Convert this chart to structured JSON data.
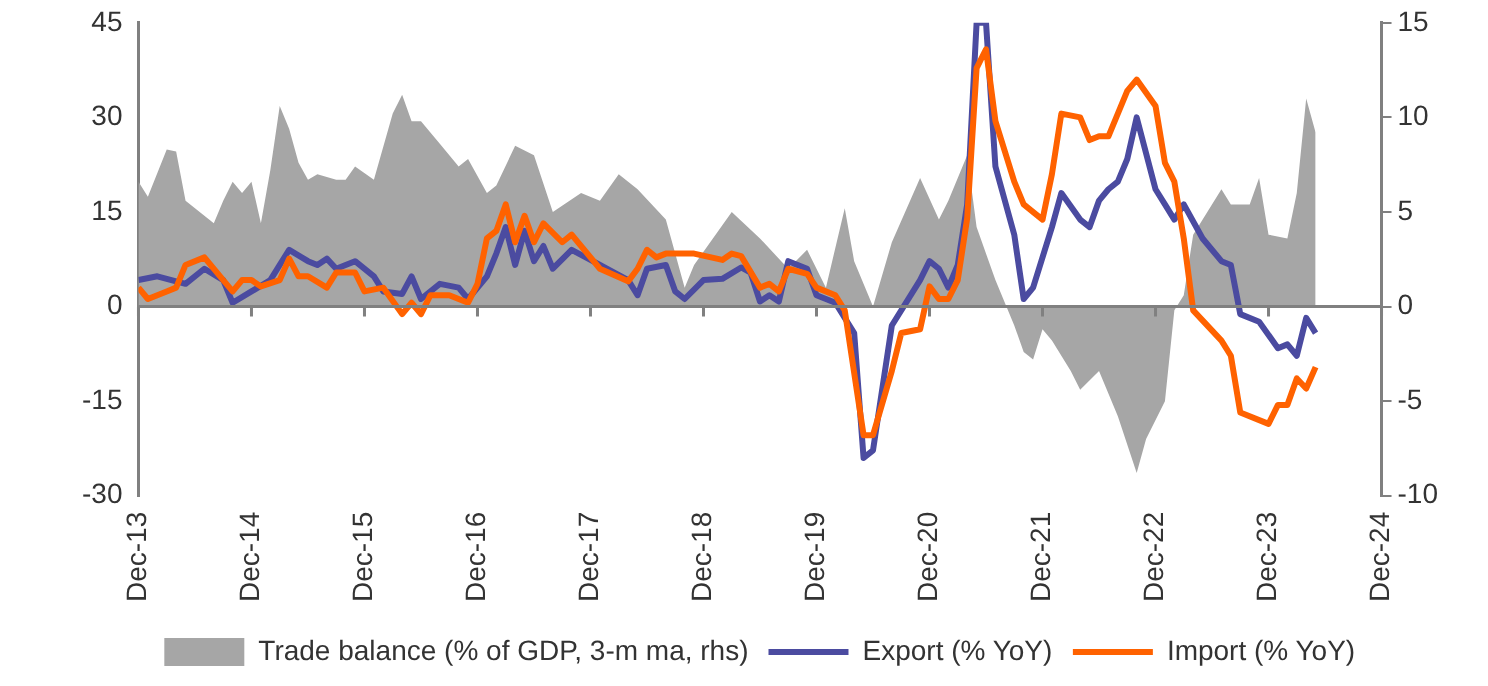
{
  "chart_data": {
    "type": "line",
    "legend": "bottom",
    "xlim": [
      "2013-12",
      "2024-12"
    ],
    "xticks": [
      {
        "value": "2013-12",
        "label": "Dec-13"
      },
      {
        "value": "2014-12",
        "label": "Dec-14"
      },
      {
        "value": "2015-12",
        "label": "Dec-15"
      },
      {
        "value": "2016-12",
        "label": "Dec-16"
      },
      {
        "value": "2017-12",
        "label": "Dec-17"
      },
      {
        "value": "2018-12",
        "label": "Dec-18"
      },
      {
        "value": "2019-12",
        "label": "Dec-19"
      },
      {
        "value": "2020-12",
        "label": "Dec-20"
      },
      {
        "value": "2021-12",
        "label": "Dec-21"
      },
      {
        "value": "2022-12",
        "label": "Dec-22"
      },
      {
        "value": "2023-12",
        "label": "Dec-23"
      },
      {
        "value": "2024-12",
        "label": "Dec-24"
      }
    ],
    "ylim": [
      -30,
      45
    ],
    "yticks": [
      -30,
      -15,
      0,
      15,
      30,
      45
    ],
    "y2lim": [
      -10,
      15
    ],
    "y2ticks": [
      -10,
      -5,
      0,
      5,
      10,
      15
    ],
    "series": [
      {
        "name": "Trade balance (% of GDP, 3-m ma, rhs)",
        "type": "area",
        "axis": "y2",
        "color": "#a6a6a6",
        "x": [
          "2013-12",
          "2014-01",
          "2014-03",
          "2014-04",
          "2014-05",
          "2014-08",
          "2014-09",
          "2014-10",
          "2014-11",
          "2014-12",
          "2015-01",
          "2015-02",
          "2015-03",
          "2015-04",
          "2015-05",
          "2015-06",
          "2015-07",
          "2015-09",
          "2015-10",
          "2015-11",
          "2016-01",
          "2016-03",
          "2016-04",
          "2016-05",
          "2016-06",
          "2016-08",
          "2016-10",
          "2016-11",
          "2017-01",
          "2017-02",
          "2017-04",
          "2017-06",
          "2017-08",
          "2017-11",
          "2018-01",
          "2018-03",
          "2018-05",
          "2018-08",
          "2018-10",
          "2018-11",
          "2019-03",
          "2019-06",
          "2019-09",
          "2019-11",
          "2020-01",
          "2020-03",
          "2020-04",
          "2020-06",
          "2020-08",
          "2020-11",
          "2021-01",
          "2021-02",
          "2021-04",
          "2021-05",
          "2021-07",
          "2021-09",
          "2021-10",
          "2021-11",
          "2021-12",
          "2022-01",
          "2022-03",
          "2022-04",
          "2022-06",
          "2022-08",
          "2022-10",
          "2022-11",
          "2023-01",
          "2023-02",
          "2023-03",
          "2023-04",
          "2023-07",
          "2023-08",
          "2023-10",
          "2023-11",
          "2023-12",
          "2024-02",
          "2024-03",
          "2024-04",
          "2024-05"
        ],
        "values": [
          6.6,
          5.8,
          8.3,
          8.2,
          5.6,
          4.4,
          5.6,
          6.6,
          6.0,
          6.6,
          4.4,
          7.2,
          10.6,
          9.4,
          7.6,
          6.7,
          7.0,
          6.7,
          6.7,
          7.4,
          6.7,
          10.2,
          11.2,
          9.8,
          9.8,
          8.6,
          7.4,
          7.8,
          6.0,
          6.4,
          8.5,
          8.0,
          5.0,
          6.0,
          5.6,
          7.0,
          6.2,
          4.6,
          1.0,
          2.2,
          5.0,
          3.6,
          2.0,
          3.0,
          1.0,
          5.2,
          2.4,
          0,
          3.4,
          6.8,
          4.6,
          5.6,
          8.0,
          4.2,
          1.4,
          -1.0,
          -2.4,
          -2.8,
          -1.2,
          -1.8,
          -3.4,
          -4.4,
          -3.4,
          -5.8,
          -8.8,
          -7.0,
          -5.0,
          -0.2,
          0.6,
          3.8,
          6.2,
          5.4,
          5.4,
          6.8,
          3.8,
          3.6,
          6.0,
          11.0,
          9.2
        ]
      },
      {
        "name": "Export (% YoY)",
        "type": "line",
        "color": "#4b4ba0",
        "x": [
          "2013-12",
          "2014-02",
          "2014-05",
          "2014-07",
          "2014-09",
          "2014-10",
          "2014-12",
          "2015-02",
          "2015-04",
          "2015-06",
          "2015-07",
          "2015-08",
          "2015-09",
          "2015-11",
          "2016-01",
          "2016-02",
          "2016-04",
          "2016-05",
          "2016-06",
          "2016-08",
          "2016-10",
          "2016-11",
          "2017-01",
          "2017-02",
          "2017-03",
          "2017-04",
          "2017-05",
          "2017-06",
          "2017-07",
          "2017-08",
          "2017-10",
          "2018-01",
          "2018-04",
          "2018-05",
          "2018-06",
          "2018-08",
          "2018-09",
          "2018-10",
          "2018-12",
          "2019-02",
          "2019-04",
          "2019-05",
          "2019-06",
          "2019-07",
          "2019-08",
          "2019-09",
          "2019-11",
          "2019-12",
          "2020-02",
          "2020-04",
          "2020-05",
          "2020-06",
          "2020-08",
          "2020-11",
          "2020-12",
          "2021-01",
          "2021-02",
          "2021-03",
          "2021-04",
          "2021-05",
          "2021-06",
          "2021-07",
          "2021-09",
          "2021-10",
          "2021-11",
          "2022-01",
          "2022-02",
          "2022-04",
          "2022-05",
          "2022-06",
          "2022-07",
          "2022-08",
          "2022-09",
          "2022-10",
          "2022-12",
          "2023-01",
          "2023-02",
          "2023-03",
          "2023-05",
          "2023-07",
          "2023-08",
          "2023-09",
          "2023-11",
          "2024-01",
          "2024-02",
          "2024-03",
          "2024-04",
          "2024-05"
        ],
        "values": [
          4.2,
          4.8,
          3.6,
          6.0,
          4.2,
          0.6,
          2.4,
          4.2,
          9.0,
          7.2,
          6.6,
          7.6,
          6.0,
          7.2,
          4.8,
          2.4,
          2.0,
          4.8,
          1.2,
          3.6,
          3.0,
          1.2,
          4.8,
          8.4,
          12.6,
          6.6,
          12.0,
          7.2,
          9.6,
          6.0,
          9.0,
          6.6,
          4.2,
          1.8,
          6.0,
          6.6,
          2.4,
          1.2,
          4.2,
          4.4,
          6.2,
          5.4,
          0.8,
          1.8,
          0.8,
          7.2,
          6.0,
          1.8,
          0.6,
          -4.2,
          -24.0,
          -22.8,
          -3.0,
          4.2,
          7.2,
          6.0,
          3.0,
          6.6,
          16.2,
          45,
          45,
          22.2,
          11.4,
          1.2,
          3.0,
          12.6,
          18,
          13.8,
          12.6,
          16.8,
          18.6,
          19.8,
          23.4,
          30,
          18.6,
          16.2,
          13.8,
          16.2,
          10.8,
          7.2,
          6.6,
          -1.2,
          -2.4,
          -6.6,
          -6.0,
          -7.8,
          -1.8,
          -4.2
        ]
      },
      {
        "name": "Import (% YoY)",
        "type": "line",
        "color": "#ff6200",
        "x": [
          "2013-12",
          "2014-01",
          "2014-03",
          "2014-04",
          "2014-05",
          "2014-07",
          "2014-09",
          "2014-10",
          "2014-11",
          "2014-12",
          "2015-01",
          "2015-03",
          "2015-04",
          "2015-05",
          "2015-06",
          "2015-08",
          "2015-09",
          "2015-11",
          "2015-12",
          "2016-02",
          "2016-04",
          "2016-05",
          "2016-06",
          "2016-07",
          "2016-09",
          "2016-11",
          "2016-12",
          "2017-01",
          "2017-02",
          "2017-03",
          "2017-04",
          "2017-05",
          "2017-06",
          "2017-07",
          "2017-09",
          "2017-10",
          "2018-01",
          "2018-04",
          "2018-05",
          "2018-06",
          "2018-07",
          "2018-08",
          "2018-11",
          "2019-02",
          "2019-03",
          "2019-04",
          "2019-06",
          "2019-07",
          "2019-08",
          "2019-09",
          "2019-11",
          "2019-12",
          "2020-02",
          "2020-03",
          "2020-05",
          "2020-06",
          "2020-08",
          "2020-09",
          "2020-11",
          "2020-12",
          "2021-01",
          "2021-02",
          "2021-03",
          "2021-04",
          "2021-05",
          "2021-06",
          "2021-07",
          "2021-09",
          "2021-10",
          "2021-12",
          "2022-01",
          "2022-02",
          "2022-04",
          "2022-05",
          "2022-06",
          "2022-07",
          "2022-09",
          "2022-10",
          "2022-12",
          "2023-01",
          "2023-02",
          "2023-03",
          "2023-04",
          "2023-07",
          "2023-08",
          "2023-09",
          "2023-12",
          "2024-01",
          "2024-02",
          "2024-03",
          "2024-04",
          "2024-05"
        ],
        "values": [
          3.0,
          1.2,
          2.4,
          3.0,
          6.6,
          7.8,
          4.2,
          2.4,
          4.2,
          4.2,
          3.2,
          4.2,
          7.6,
          4.8,
          4.8,
          3.0,
          5.4,
          5.4,
          2.4,
          3.0,
          -1.2,
          0.6,
          -1.2,
          1.8,
          1.8,
          0.6,
          3.6,
          10.8,
          12.0,
          16.2,
          10.2,
          14.4,
          10.2,
          13.2,
          10.2,
          11.4,
          6.0,
          4.0,
          6.0,
          9.0,
          7.8,
          8.4,
          8.4,
          7.4,
          8.4,
          8.0,
          3.0,
          3.6,
          2.4,
          6.0,
          5.2,
          3.0,
          1.8,
          -0.6,
          -20.4,
          -20.4,
          -10.2,
          -4.2,
          -3.6,
          3.2,
          1.2,
          1.2,
          4.2,
          14,
          37.8,
          40.8,
          29.4,
          19.8,
          16.2,
          13.8,
          21,
          30.6,
          30,
          26.4,
          27,
          27,
          34.2,
          36,
          31.8,
          22.8,
          19.8,
          10.8,
          -0.6,
          -5.4,
          -7.8,
          -16.8,
          -18.6,
          -15.6,
          -15.6,
          -11.4,
          -13,
          -9.6
        ]
      }
    ]
  }
}
